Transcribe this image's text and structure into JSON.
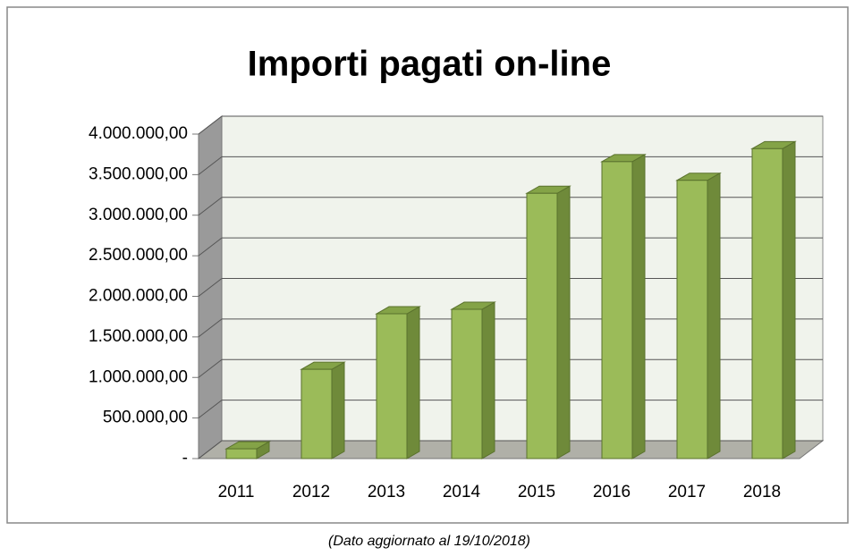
{
  "chart_data": {
    "type": "bar3d",
    "title": "Importi pagati on-line",
    "annotation": "(Dato aggiornato al 19/10/2018)",
    "categories": [
      "2011",
      "2012",
      "2013",
      "2014",
      "2015",
      "2016",
      "2017",
      "2018"
    ],
    "values": [
      120000,
      1100000,
      1785000,
      1840000,
      3270000,
      3660000,
      3430000,
      3820000
    ],
    "color": "#9bbb59",
    "ylim": [
      0,
      4000000
    ],
    "yticks": [
      {
        "value": 0,
        "label": "-"
      },
      {
        "value": 500000,
        "label": "500.000,00"
      },
      {
        "value": 1000000,
        "label": "1.000.000,00"
      },
      {
        "value": 1500000,
        "label": "1.500.000,00"
      },
      {
        "value": 2000000,
        "label": "2.000.000,00"
      },
      {
        "value": 2500000,
        "label": "2.500.000,00"
      },
      {
        "value": 3000000,
        "label": "3.000.000,00"
      },
      {
        "value": 3500000,
        "label": "3.500.000,00"
      },
      {
        "value": 4000000,
        "label": "4.000.000,00"
      }
    ],
    "grid": true
  }
}
